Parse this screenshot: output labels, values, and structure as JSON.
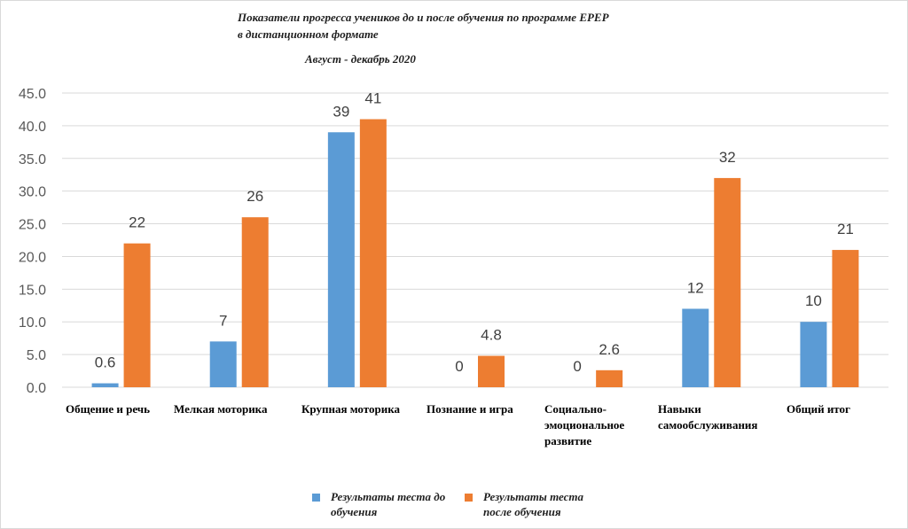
{
  "chart_data": {
    "type": "bar",
    "title": "Показатели прогресса учеников до и после обучения по программе EPEP в дистанционном формате",
    "subtitle": "Август - декабрь 2020",
    "categories": [
      "Общение и речь",
      "Мелкая моторика",
      "Крупная моторика",
      "Познание и игра",
      "Социально-эмоциональное развитие",
      "Навыки самообслуживания",
      "Общий итог"
    ],
    "series": [
      {
        "name": "Результаты теста до обучения",
        "color": "#5b9bd5",
        "values": [
          0.6,
          7,
          39,
          0,
          0,
          12,
          10
        ],
        "labels": [
          "0.6",
          "7",
          "39",
          "0",
          "0",
          "12",
          "10"
        ]
      },
      {
        "name": "Результаты теста после обучения",
        "color": "#ed7d31",
        "values": [
          22,
          26,
          41,
          4.8,
          2.6,
          32,
          21
        ],
        "labels": [
          "22",
          "26",
          "41",
          "4.8",
          "2.6",
          "32",
          "21"
        ]
      }
    ],
    "ylim": [
      0,
      45
    ],
    "yticks": [
      "0.0",
      "5.0",
      "10.0",
      "15.0",
      "20.0",
      "25.0",
      "30.0",
      "35.0",
      "40.0",
      "45.0"
    ],
    "grid": true,
    "legend_position": "bottom",
    "xlabel": "",
    "ylabel": ""
  }
}
